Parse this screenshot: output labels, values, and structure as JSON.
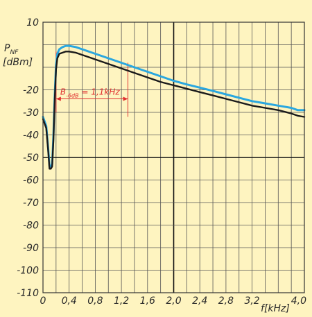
{
  "chart_data": {
    "type": "line",
    "xlim": [
      0,
      4.0
    ],
    "ylim": [
      -110,
      10
    ],
    "x_ticks": [
      0,
      0.4,
      0.8,
      1.2,
      1.6,
      2.0,
      2.4,
      2.8,
      3.2,
      4.0
    ],
    "x_tick_labels": [
      "0",
      "0,4",
      "0,8",
      "1,2",
      "1,6",
      "2,0",
      "2,4",
      "2,8",
      "3,2",
      "4,0"
    ],
    "y_ticks": [
      10,
      -20,
      -30,
      -40,
      -50,
      -60,
      -70,
      -80,
      -90,
      -100,
      -110
    ],
    "y_tick_labels": [
      "10",
      "-20",
      "-30",
      "-40",
      "-50",
      "-60",
      "-70",
      "-80",
      "-90",
      "-100",
      "-110"
    ],
    "x_major_gridlines": [
      2.0
    ],
    "y_major_gridlines": [
      -50
    ],
    "grid": true,
    "ylabel": {
      "base": "P",
      "sub": "NF",
      "unit": "[dBm]"
    },
    "xlabel": {
      "base": "f",
      "unit": "[kHz]"
    },
    "annotation": {
      "base": "B",
      "sub": "-6dB",
      "text": " = 1,1kHz",
      "x_start": 0.2,
      "x_end": 1.3,
      "y": -24
    },
    "series": [
      {
        "color": "#2aa7df",
        "x": [
          0,
          0.05,
          0.08,
          0.1,
          0.12,
          0.14,
          0.16,
          0.18,
          0.2,
          0.22,
          0.25,
          0.3,
          0.35,
          0.4,
          0.5,
          0.6,
          0.8,
          1.0,
          1.2,
          1.4,
          1.6,
          1.8,
          2.0,
          2.2,
          2.4,
          2.6,
          2.8,
          3.0,
          3.2,
          3.4,
          3.6,
          3.8,
          3.9,
          4.0
        ],
        "y": [
          -32,
          -36,
          -46,
          -54,
          -54,
          -53,
          -40,
          -22,
          -9,
          -4,
          -2,
          -1,
          -0.5,
          -0.5,
          -1,
          -2,
          -4,
          -6,
          -8,
          -10,
          -12,
          -14,
          -16,
          -17.6,
          -19,
          -20.5,
          -22,
          -23.5,
          -25,
          -26,
          -27,
          -28,
          -29,
          -29
        ]
      },
      {
        "color": "#1a1a1a",
        "x": [
          0,
          0.05,
          0.08,
          0.1,
          0.12,
          0.14,
          0.16,
          0.18,
          0.2,
          0.22,
          0.25,
          0.3,
          0.35,
          0.4,
          0.5,
          0.6,
          0.8,
          1.0,
          1.2,
          1.4,
          1.6,
          1.8,
          2.0,
          2.2,
          2.4,
          2.6,
          2.8,
          3.0,
          3.2,
          3.4,
          3.6,
          3.8,
          3.9,
          4.0
        ],
        "y": [
          -33,
          -37,
          -47,
          -55,
          -55,
          -54,
          -42,
          -24,
          -11,
          -6,
          -4,
          -3.5,
          -3,
          -3,
          -3.5,
          -4.5,
          -6.5,
          -8.5,
          -10.5,
          -12.5,
          -14.5,
          -16.5,
          -18,
          -19.5,
          -21,
          -22.5,
          -24,
          -25.5,
          -27,
          -28,
          -29,
          -30.5,
          -31.5,
          -32
        ]
      }
    ]
  }
}
